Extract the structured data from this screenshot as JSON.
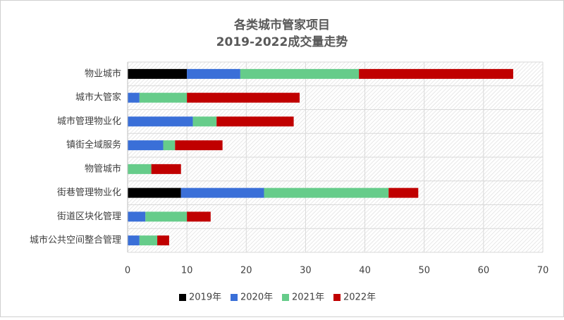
{
  "chart_data": {
    "type": "stacked-horizontal-bar",
    "title": [
      "各类城市管家项目",
      "2019-2022成交量走势"
    ],
    "categories": [
      "物业城市",
      "城市大管家",
      "城市管理物业化",
      "镇街全域服务",
      "物管城市",
      "街巷管理物业化",
      "街道区块化管理",
      "城市公共空间整合管理"
    ],
    "series": [
      {
        "name": "2019年",
        "color": "#000000",
        "values": [
          10,
          0,
          0,
          0,
          0,
          9,
          0,
          0
        ]
      },
      {
        "name": "2020年",
        "color": "#3a6fd8",
        "values": [
          9,
          2,
          11,
          6,
          0,
          14,
          3,
          2
        ]
      },
      {
        "name": "2021年",
        "color": "#66cc8a",
        "values": [
          20,
          8,
          4,
          2,
          4,
          21,
          7,
          3
        ]
      },
      {
        "name": "2022年",
        "color": "#c00000",
        "values": [
          26,
          19,
          13,
          8,
          5,
          5,
          4,
          2
        ]
      }
    ],
    "xlim": [
      0,
      70
    ],
    "xticks": [
      0,
      10,
      20,
      30,
      40,
      50,
      60,
      70
    ],
    "grid": true,
    "legend": "bottom"
  }
}
